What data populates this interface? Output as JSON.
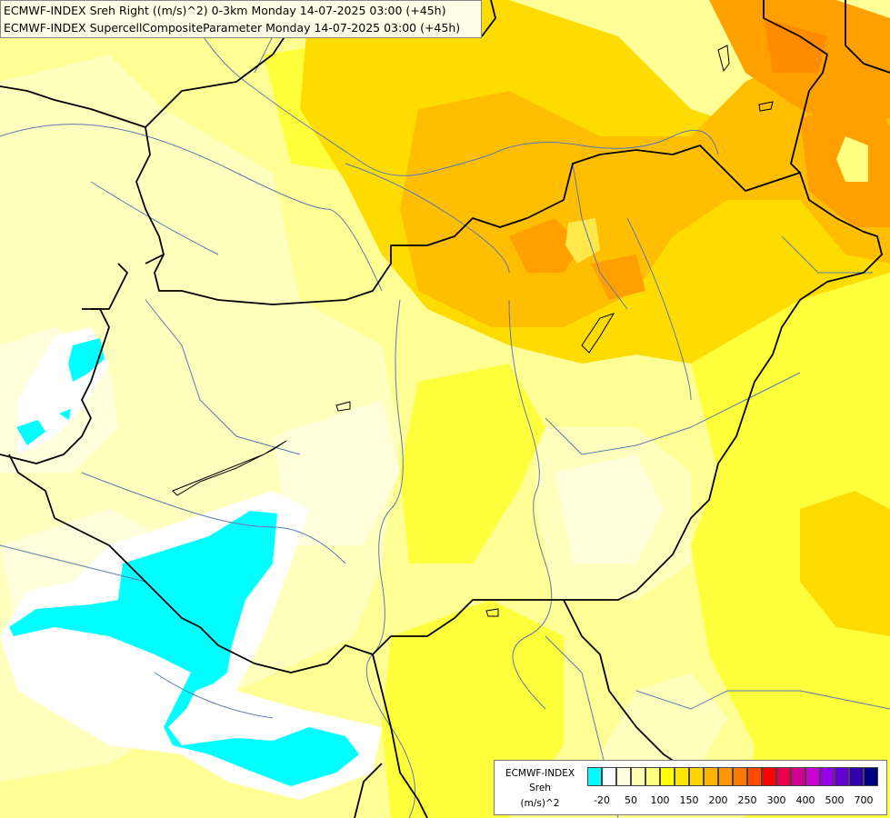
{
  "title": {
    "line1": "ECMWF-INDEX Sreh Right ((m/s)^2) 0-3km Monday 14-07-2025 03:00 (+45h)",
    "line2": "ECMWF-INDEX SupercellCompositeParameter Monday 14-07-2025 03:00 (+45h)"
  },
  "legend": {
    "label_line1": "ECMWF-INDEX",
    "label_line2": "Sreh",
    "label_line3": "(m/s)^2",
    "swatch_colors": [
      "#00ffff",
      "#ffffff",
      "#ffffe0",
      "#ffffb4",
      "#ffff80",
      "#ffff00",
      "#ffe600",
      "#ffd200",
      "#ffb400",
      "#ff9600",
      "#ff7800",
      "#ff4a00",
      "#ff0000",
      "#e6004c",
      "#d40090",
      "#c800d2",
      "#9600e6",
      "#6400d2",
      "#3200aa",
      "#000080"
    ],
    "ticks": [
      "-20",
      "50",
      "100",
      "150",
      "200",
      "250",
      "300",
      "400",
      "500",
      "700"
    ]
  },
  "colors": {
    "land_default": "#fffbd0",
    "pale_yellow": "#ffffb4",
    "yellow": "#ffff50",
    "gold": "#ffdc00",
    "orange": "#ffb400",
    "dark_orange": "#ff9600",
    "cyan": "#00ffff",
    "white": "#ffffff",
    "border_line": "#000000",
    "river_line": "#5a7ab0"
  }
}
